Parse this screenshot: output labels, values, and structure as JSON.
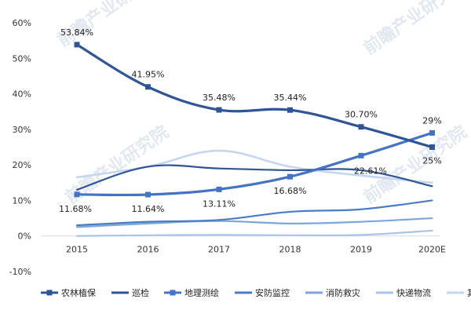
{
  "chart_data": {
    "type": "line",
    "title": "",
    "xlabel": "",
    "ylabel": "",
    "categories": [
      "2015",
      "2016",
      "2017",
      "2018",
      "2019",
      "2020E"
    ],
    "ylim": [
      -10,
      60
    ],
    "y_ticks": [
      "-10%",
      "0%",
      "10%",
      "20%",
      "30%",
      "40%",
      "50%",
      "60%"
    ],
    "y_tick_values": [
      -10,
      0,
      10,
      20,
      30,
      40,
      50,
      60
    ],
    "grid": false,
    "legend_position": "bottom",
    "series": [
      {
        "name": "农林植保",
        "values": [
          53.84,
          41.95,
          35.48,
          35.44,
          30.7,
          25
        ],
        "color": "#2f5597",
        "marker": "square",
        "labels": [
          "53.84%",
          "41.95%",
          "35.48%",
          "35.44%",
          "30.70%",
          "25%"
        ]
      },
      {
        "name": "巡检",
        "values": [
          13,
          19.5,
          19,
          18.5,
          18.5,
          14
        ],
        "color": "#2f5597",
        "marker": "none",
        "labels": []
      },
      {
        "name": "地理测绘",
        "values": [
          11.68,
          11.64,
          13.11,
          16.68,
          22.61,
          29
        ],
        "color": "#4472c4",
        "marker": "square",
        "labels": [
          "11.68%",
          "11.64%",
          "13.11%",
          "16.68%",
          "22.61%",
          "29%"
        ]
      },
      {
        "name": "安防监控",
        "values": [
          3,
          4,
          4.5,
          6.8,
          7.5,
          10
        ],
        "color": "#4a7bc8",
        "marker": "none",
        "labels": []
      },
      {
        "name": "消防救灾",
        "values": [
          2.5,
          3.5,
          4.2,
          3.5,
          4,
          5
        ],
        "color": "#7ea6dc",
        "marker": "none",
        "labels": []
      },
      {
        "name": "快递物流",
        "values": [
          0,
          0.2,
          0.3,
          0.2,
          0.3,
          1.5
        ],
        "color": "#a9c4ea",
        "marker": "none",
        "labels": []
      },
      {
        "name": "其他",
        "values": [
          16.5,
          19.5,
          24,
          19.5,
          17,
          15
        ],
        "color": "#c5d6ef",
        "marker": "none",
        "labels": []
      }
    ],
    "watermark": "前瞻产业研究院"
  }
}
